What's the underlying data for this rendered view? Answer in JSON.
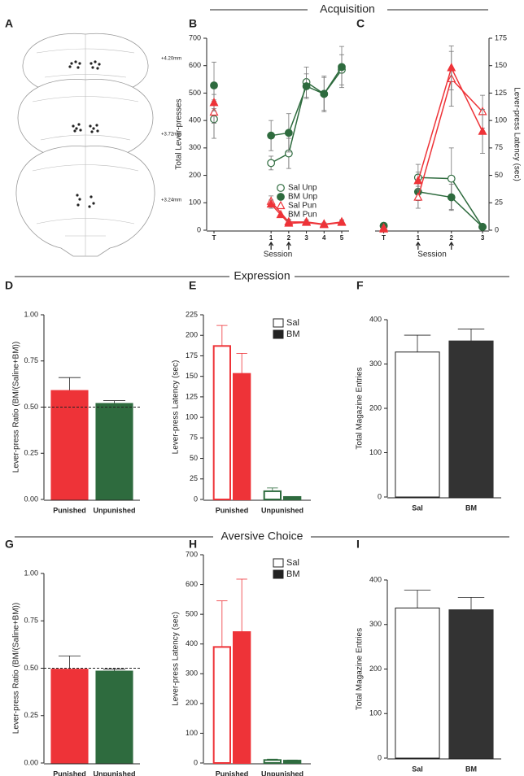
{
  "figure": {
    "sections": [
      "Acquisition",
      "Expression",
      "Aversive Choice"
    ],
    "panel_a": "A",
    "atlas_labels": [
      "+4.20mm",
      "+3.72mm",
      "+3.24mm"
    ]
  },
  "chart_data": [
    {
      "panel": "B",
      "type": "line",
      "x_label": "Session",
      "y_label": "Total Lever-presses",
      "categories": [
        "T",
        "1",
        "2",
        "3",
        "4",
        "5"
      ],
      "ylim": [
        0,
        700
      ],
      "yticks": [
        0,
        100,
        200,
        300,
        400,
        500,
        600,
        700
      ],
      "legend": "lower right",
      "series": [
        {
          "name": "Sal Unp",
          "color": "#2e6b3e",
          "marker": "circle",
          "filled": false,
          "values": [
            405,
            245,
            280,
            540,
            497,
            585
          ],
          "errors": [
            70,
            25,
            55,
            55,
            65,
            55
          ]
        },
        {
          "name": "BM Unp",
          "color": "#2e6b3e",
          "marker": "circle",
          "filled": true,
          "values": [
            528,
            345,
            355,
            525,
            497,
            595
          ],
          "errors": [
            85,
            55,
            70,
            45,
            60,
            75
          ]
        },
        {
          "name": "Sal Pun",
          "color": "#ee3338",
          "marker": "triangle",
          "filled": false,
          "values": [
            430,
            105,
            30,
            30,
            22,
            30
          ],
          "errors": [
            40,
            20,
            10,
            8,
            5,
            8
          ]
        },
        {
          "name": "BM Pun",
          "color": "#ee3338",
          "marker": "triangle",
          "filled": true,
          "values": [
            465,
            95,
            25,
            28,
            20,
            28
          ],
          "errors": [
            30,
            15,
            10,
            5,
            5,
            5
          ]
        }
      ]
    },
    {
      "panel": "C",
      "type": "line",
      "x_label": "Session",
      "y_label": "Lever-press Latency (sec)",
      "y_axis_side": "right",
      "categories": [
        "T",
        "1",
        "2",
        "3"
      ],
      "ylim": [
        0,
        175
      ],
      "yticks": [
        0,
        25,
        50,
        75,
        100,
        125,
        150,
        175
      ],
      "series": [
        {
          "name": "Sal Unp",
          "color": "#2e6b3e",
          "marker": "circle",
          "filled": false,
          "values": [
            4,
            48,
            47,
            3
          ],
          "errors": [
            1,
            12,
            28,
            2
          ]
        },
        {
          "name": "BM Unp",
          "color": "#2e6b3e",
          "marker": "circle",
          "filled": true,
          "values": [
            4,
            35,
            30,
            3
          ],
          "errors": [
            1,
            8,
            12,
            1
          ]
        },
        {
          "name": "Sal Pun",
          "color": "#ee3338",
          "marker": "triangle",
          "filled": false,
          "values": [
            2,
            30,
            138,
            108
          ],
          "errors": [
            1,
            10,
            25,
            15
          ]
        },
        {
          "name": "BM Pun",
          "color": "#ee3338",
          "marker": "triangle",
          "filled": true,
          "values": [
            1,
            45,
            148,
            90
          ],
          "errors": [
            1,
            8,
            20,
            20
          ]
        }
      ]
    },
    {
      "panel": "D",
      "type": "bar",
      "y_label": "Lever-press Ratio (BM/(Saline+BM))",
      "categories": [
        "Punished",
        "Unpunished"
      ],
      "values": [
        0.59,
        0.52
      ],
      "errors": [
        0.07,
        0.015
      ],
      "colors": [
        "#ee3338",
        "#2e6b3e"
      ],
      "reference_line": 0.5,
      "ylim": [
        0,
        1
      ],
      "yticks": [
        {
          "value": 0,
          "label": "0.00"
        },
        {
          "value": 0.25,
          "label": "0.25"
        },
        {
          "value": 0.5,
          "label": "0.50"
        },
        {
          "value": 0.75,
          "label": "0.75"
        },
        {
          "value": 1,
          "label": "1.00"
        }
      ]
    },
    {
      "panel": "E",
      "type": "grouped_bar",
      "y_label": "Lever-press Latency (sec)",
      "categories": [
        "Punished",
        "Unpunished"
      ],
      "category_colors": [
        "#ee3338",
        "#2e6b3e"
      ],
      "legend": "upper right",
      "ylim": [
        0,
        225
      ],
      "yticks": [
        0,
        25,
        50,
        75,
        100,
        125,
        150,
        175,
        200,
        225
      ],
      "series": [
        {
          "name": "Sal",
          "color": "#ffffff",
          "values": [
            187,
            10
          ],
          "errors": [
            25,
            4
          ]
        },
        {
          "name": "BM",
          "color": "#222222",
          "values": [
            153,
            3
          ],
          "errors": [
            25,
            0.5
          ]
        }
      ]
    },
    {
      "panel": "F",
      "type": "bar",
      "y_label": "Total Magazine Entries",
      "categories": [
        "Sal",
        "BM"
      ],
      "values": [
        327,
        352
      ],
      "errors": [
        38,
        27
      ],
      "colors": [
        "#ffffff",
        "#333333"
      ],
      "ylim": [
        0,
        400
      ],
      "yticks": [
        0,
        100,
        200,
        300,
        400
      ]
    },
    {
      "panel": "G",
      "type": "bar",
      "y_label": "Lever-press Ratio (BM/(Saline+BM))",
      "categories": [
        "Punished",
        "Unpunished"
      ],
      "values": [
        0.495,
        0.485
      ],
      "errors": [
        0.07,
        0.01
      ],
      "colors": [
        "#ee3338",
        "#2e6b3e"
      ],
      "reference_line": 0.5,
      "ylim": [
        0,
        1
      ],
      "yticks": [
        {
          "value": 0,
          "label": "0.00"
        },
        {
          "value": 0.25,
          "label": "0.25"
        },
        {
          "value": 0.5,
          "label": "0.50"
        },
        {
          "value": 0.75,
          "label": "0.75"
        },
        {
          "value": 1,
          "label": "1.00"
        }
      ]
    },
    {
      "panel": "H",
      "type": "grouped_bar",
      "y_label": "Lever-press Latency (sec)",
      "categories": [
        "Punished",
        "Unpunished"
      ],
      "category_colors": [
        "#ee3338",
        "#2e6b3e"
      ],
      "legend": "upper right",
      "ylim": [
        0,
        700
      ],
      "yticks": [
        0,
        100,
        200,
        300,
        400,
        500,
        600,
        700
      ],
      "series": [
        {
          "name": "Sal",
          "color": "#ffffff",
          "values": [
            390,
            10
          ],
          "errors": [
            155,
            3
          ]
        },
        {
          "name": "BM",
          "color": "#222222",
          "values": [
            440,
            8
          ],
          "errors": [
            178,
            2
          ]
        }
      ]
    },
    {
      "panel": "I",
      "type": "bar",
      "y_label": "Total Magazine Entries",
      "categories": [
        "Sal",
        "BM"
      ],
      "values": [
        337,
        333
      ],
      "errors": [
        40,
        28
      ],
      "colors": [
        "#ffffff",
        "#333333"
      ],
      "ylim": [
        0,
        400
      ],
      "yticks": [
        0,
        100,
        200,
        300,
        400
      ]
    }
  ]
}
